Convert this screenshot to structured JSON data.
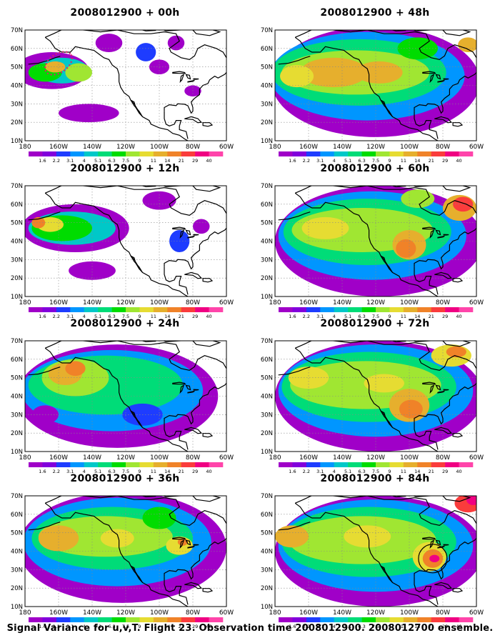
{
  "caption": "Signal Variance for u,v,T. Flight 23. Observation time 2008012900. 2008012700 ensemble.",
  "lon_labels": [
    "180",
    "160W",
    "140W",
    "120W",
    "100W",
    "80W",
    "60W"
  ],
  "lat_labels": [
    "70N",
    "60N",
    "50N",
    "40N",
    "30N",
    "20N",
    "10N"
  ],
  "colorbar": {
    "levels": [
      "1.6",
      "2.2",
      "3.1",
      "4",
      "5.1",
      "6.3",
      "7.5",
      "9",
      "11",
      "14",
      "21",
      "29",
      "40"
    ],
    "colors": [
      "#a000c8",
      "#8200dc",
      "#1e3cff",
      "#0096ff",
      "#00c8c8",
      "#00dc78",
      "#00dc00",
      "#a0e632",
      "#e6dc32",
      "#e6af2d",
      "#f08228",
      "#fa3c3c",
      "#f00082",
      "#ff44aa"
    ]
  },
  "panels": [
    {
      "id": "p00",
      "title": "2008012900 + 00h"
    },
    {
      "id": "p48",
      "title": "2008012900 + 48h"
    },
    {
      "id": "p12",
      "title": "2008012900 + 12h"
    },
    {
      "id": "p60",
      "title": "2008012900 + 60h"
    },
    {
      "id": "p24",
      "title": "2008012900 + 24h"
    },
    {
      "id": "p72",
      "title": "2008012900 + 72h"
    },
    {
      "id": "p36",
      "title": "2008012900 + 36h"
    },
    {
      "id": "p84",
      "title": "2008012900 + 84h"
    }
  ]
}
